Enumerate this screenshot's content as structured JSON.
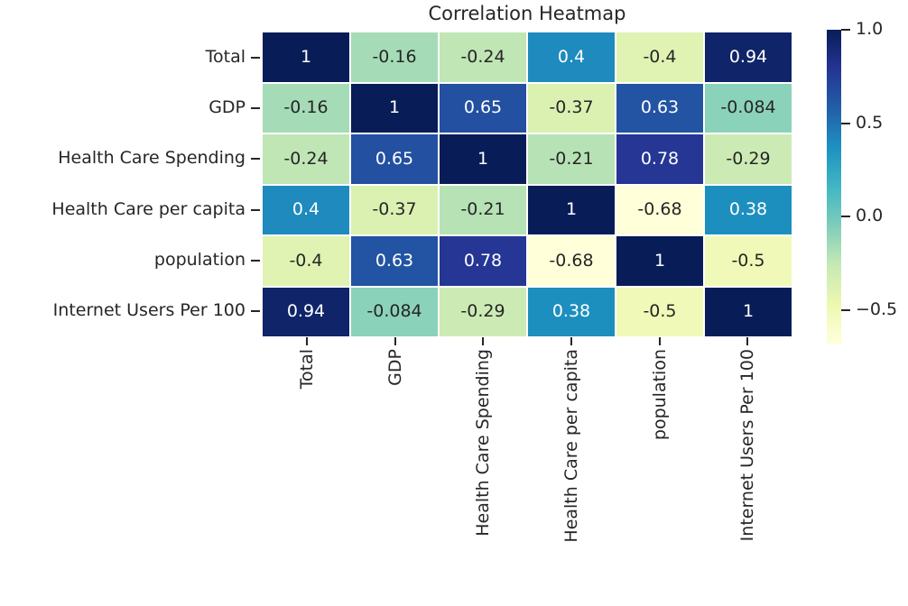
{
  "chart_data": {
    "type": "heatmap",
    "title": "Correlation Heatmap",
    "categories": [
      "Total",
      "GDP",
      "Health Care Spending",
      "Health Care per capita",
      "population",
      "Internet Users Per 100"
    ],
    "matrix": [
      [
        1,
        -0.16,
        -0.24,
        0.4,
        -0.4,
        0.94
      ],
      [
        -0.16,
        1,
        0.65,
        -0.37,
        0.63,
        -0.084
      ],
      [
        -0.24,
        0.65,
        1,
        -0.21,
        0.78,
        -0.29
      ],
      [
        0.4,
        -0.37,
        -0.21,
        1,
        -0.68,
        0.38
      ],
      [
        -0.4,
        0.63,
        0.78,
        -0.68,
        1,
        -0.5
      ],
      [
        0.94,
        -0.084,
        -0.29,
        0.38,
        -0.5,
        1
      ]
    ],
    "vmin": -0.68,
    "vmax": 1.0,
    "colormap": {
      "name": "YlGnBu",
      "stops": [
        "#ffffd9",
        "#edf8b1",
        "#c7e9b4",
        "#7fcdbb",
        "#41b6c4",
        "#1d91c0",
        "#225ea8",
        "#253494",
        "#081d58"
      ]
    },
    "colorbar": {
      "tick_labels": [
        "1.0",
        "0.5",
        "0.0",
        "−0.5"
      ],
      "tick_values": [
        1.0,
        0.5,
        0.0,
        -0.5
      ]
    },
    "annotation_colors": {
      "light_text": "#ffffff",
      "dark_text": "#262626"
    },
    "grid_line_color": "#ffffff",
    "legend_position": "right",
    "grid": false
  }
}
